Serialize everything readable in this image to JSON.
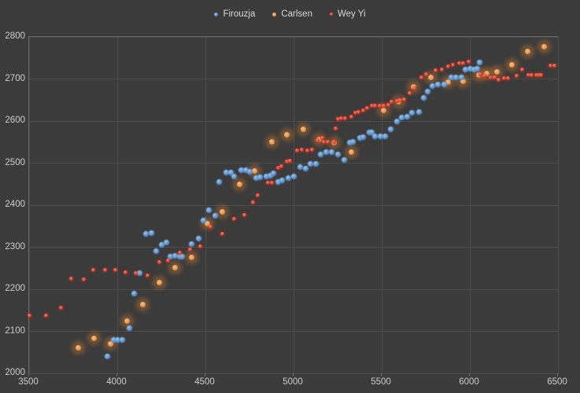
{
  "colors": {
    "background": "#3b3b3b",
    "plot_border": "#646464",
    "gridline": "#4d4d4d",
    "tick_label": "#cdcdcd",
    "legend_text": "#d8d8d8",
    "firouzja_blue": "#5b9bd5",
    "carlsen_orange": "#e1883c",
    "weyyi_red": "#d43a2a"
  },
  "chart_data": {
    "type": "scatter",
    "title": "",
    "xlabel": "",
    "ylabel": "",
    "xlim": [
      3500,
      6500
    ],
    "ylim": [
      2000,
      2800
    ],
    "x_ticks": [
      3500,
      4000,
      4500,
      5000,
      5500,
      6000,
      6500
    ],
    "y_ticks": [
      2000,
      2100,
      2200,
      2300,
      2400,
      2500,
      2600,
      2700,
      2800
    ],
    "grid": true,
    "legend_position": "top-center",
    "series": [
      {
        "name": "Firouzja",
        "marker_color": "#4a7ebb",
        "marker_center": "#9cc3e8",
        "marker_size": 7,
        "glow": "0 0 1px 1px rgba(91,155,213,0.30)",
        "z": 2,
        "points": [
          [
            3946,
            2041
          ],
          [
            3978,
            2079
          ],
          [
            4004,
            2079
          ],
          [
            4031,
            2079
          ],
          [
            4071,
            2107
          ],
          [
            4098,
            2189
          ],
          [
            4129,
            2239
          ],
          [
            4161,
            2331
          ],
          [
            4192,
            2333
          ],
          [
            4219,
            2290
          ],
          [
            4250,
            2305
          ],
          [
            4281,
            2312
          ],
          [
            4303,
            2277
          ],
          [
            4330,
            2279
          ],
          [
            4353,
            2277
          ],
          [
            4370,
            2277
          ],
          [
            4424,
            2308
          ],
          [
            4464,
            2321
          ],
          [
            4487,
            2364
          ],
          [
            4522,
            2387
          ],
          [
            4554,
            2374
          ],
          [
            4580,
            2456
          ],
          [
            4620,
            2477
          ],
          [
            4647,
            2477
          ],
          [
            4665,
            2469
          ],
          [
            4705,
            2484
          ],
          [
            4732,
            2484
          ],
          [
            4750,
            2480
          ],
          [
            4790,
            2465
          ],
          [
            4812,
            2467
          ],
          [
            4844,
            2469
          ],
          [
            4870,
            2471
          ],
          [
            4888,
            2475
          ],
          [
            4915,
            2456
          ],
          [
            4937,
            2458
          ],
          [
            4969,
            2464
          ],
          [
            5000,
            2469
          ],
          [
            5036,
            2490
          ],
          [
            5071,
            2486
          ],
          [
            5094,
            2499
          ],
          [
            5125,
            2499
          ],
          [
            5156,
            2520
          ],
          [
            5187,
            2527
          ],
          [
            5218,
            2527
          ],
          [
            5250,
            2520
          ],
          [
            5286,
            2508
          ],
          [
            5317,
            2548
          ],
          [
            5335,
            2550
          ],
          [
            5375,
            2559
          ],
          [
            5397,
            2561
          ],
          [
            5433,
            2572
          ],
          [
            5446,
            2572
          ],
          [
            5460,
            2563
          ],
          [
            5495,
            2563
          ],
          [
            5522,
            2564
          ],
          [
            5553,
            2581
          ],
          [
            5585,
            2600
          ],
          [
            5616,
            2608
          ],
          [
            5643,
            2610
          ],
          [
            5674,
            2619
          ],
          [
            5714,
            2621
          ],
          [
            5741,
            2656
          ],
          [
            5763,
            2671
          ],
          [
            5790,
            2684
          ],
          [
            5821,
            2686
          ],
          [
            5853,
            2686
          ],
          [
            5897,
            2703
          ],
          [
            5924,
            2703
          ],
          [
            5951,
            2703
          ],
          [
            5977,
            2722
          ],
          [
            6004,
            2725
          ],
          [
            6026,
            2723
          ],
          [
            6044,
            2725
          ],
          [
            6058,
            2740
          ]
        ]
      },
      {
        "name": "Carlsen",
        "marker_color": "#e1883c",
        "marker_center": "#f7c189",
        "marker_size": 7,
        "glow": "0 0 6px 5px rgba(210,125,50,0.40)",
        "z": 1,
        "points": [
          [
            3777,
            2060
          ],
          [
            3870,
            2084
          ],
          [
            3964,
            2071
          ],
          [
            4058,
            2125
          ],
          [
            4147,
            2163
          ],
          [
            4237,
            2215
          ],
          [
            4330,
            2251
          ],
          [
            4420,
            2275
          ],
          [
            4509,
            2357
          ],
          [
            4594,
            2385
          ],
          [
            4692,
            2450
          ],
          [
            4781,
            2482
          ],
          [
            4875,
            2551
          ],
          [
            4964,
            2568
          ],
          [
            5058,
            2581
          ],
          [
            5143,
            2557
          ],
          [
            5232,
            2548
          ],
          [
            5330,
            2527
          ],
          [
            5513,
            2626
          ],
          [
            5598,
            2645
          ],
          [
            5679,
            2682
          ],
          [
            5781,
            2703
          ],
          [
            5875,
            2692
          ],
          [
            5964,
            2694
          ],
          [
            6053,
            2710
          ],
          [
            6098,
            2714
          ],
          [
            6152,
            2716
          ],
          [
            6241,
            2733
          ],
          [
            6330,
            2766
          ],
          [
            6424,
            2776
          ]
        ]
      },
      {
        "name": "Wey Yi",
        "marker_color": "#c22f20",
        "marker_center": "#ff7d66",
        "marker_size": 5,
        "glow": "0 0 3px 1px rgba(205,55,40,0.35)",
        "z": 3,
        "points": [
          [
            3504,
            2138
          ],
          [
            3594,
            2138
          ],
          [
            3683,
            2157
          ],
          [
            3741,
            2226
          ],
          [
            3812,
            2224
          ],
          [
            3862,
            2245
          ],
          [
            3929,
            2245
          ],
          [
            3987,
            2245
          ],
          [
            4045,
            2241
          ],
          [
            4107,
            2239
          ],
          [
            4170,
            2232
          ],
          [
            4237,
            2265
          ],
          [
            4290,
            2269
          ],
          [
            4353,
            2286
          ],
          [
            4415,
            2294
          ],
          [
            4469,
            2301
          ],
          [
            4531,
            2348
          ],
          [
            4598,
            2331
          ],
          [
            4665,
            2368
          ],
          [
            4719,
            2376
          ],
          [
            4772,
            2406
          ],
          [
            4799,
            2424
          ],
          [
            4853,
            2454
          ],
          [
            4875,
            2454
          ],
          [
            4911,
            2488
          ],
          [
            4933,
            2492
          ],
          [
            4960,
            2503
          ],
          [
            4982,
            2505
          ],
          [
            5022,
            2529
          ],
          [
            5049,
            2531
          ],
          [
            5080,
            2529
          ],
          [
            5107,
            2531
          ],
          [
            5138,
            2555
          ],
          [
            5161,
            2559
          ],
          [
            5174,
            2551
          ],
          [
            5196,
            2551
          ],
          [
            5232,
            2550
          ],
          [
            5237,
            2583
          ],
          [
            5250,
            2604
          ],
          [
            5272,
            2606
          ],
          [
            5294,
            2606
          ],
          [
            5330,
            2611
          ],
          [
            5352,
            2619
          ],
          [
            5370,
            2622
          ],
          [
            5393,
            2626
          ],
          [
            5419,
            2630
          ],
          [
            5442,
            2636
          ],
          [
            5464,
            2637
          ],
          [
            5491,
            2637
          ],
          [
            5513,
            2636
          ],
          [
            5540,
            2639
          ],
          [
            5558,
            2645
          ],
          [
            5585,
            2647
          ],
          [
            5607,
            2649
          ],
          [
            5629,
            2652
          ],
          [
            5660,
            2667
          ],
          [
            5687,
            2677
          ],
          [
            5727,
            2703
          ],
          [
            5754,
            2712
          ],
          [
            5808,
            2721
          ],
          [
            5843,
            2723
          ],
          [
            5875,
            2729
          ],
          [
            5906,
            2734
          ],
          [
            5941,
            2738
          ],
          [
            5964,
            2738
          ],
          [
            5995,
            2742
          ],
          [
            6062,
            2712
          ],
          [
            6084,
            2708
          ],
          [
            6120,
            2703
          ],
          [
            6142,
            2703
          ],
          [
            6165,
            2699
          ],
          [
            6196,
            2701
          ],
          [
            6218,
            2701
          ],
          [
            6267,
            2708
          ],
          [
            6299,
            2722
          ],
          [
            6334,
            2710
          ],
          [
            6352,
            2710
          ],
          [
            6375,
            2709
          ],
          [
            6392,
            2710
          ],
          [
            6406,
            2710
          ],
          [
            6459,
            2731
          ],
          [
            6482,
            2731
          ]
        ]
      }
    ]
  }
}
